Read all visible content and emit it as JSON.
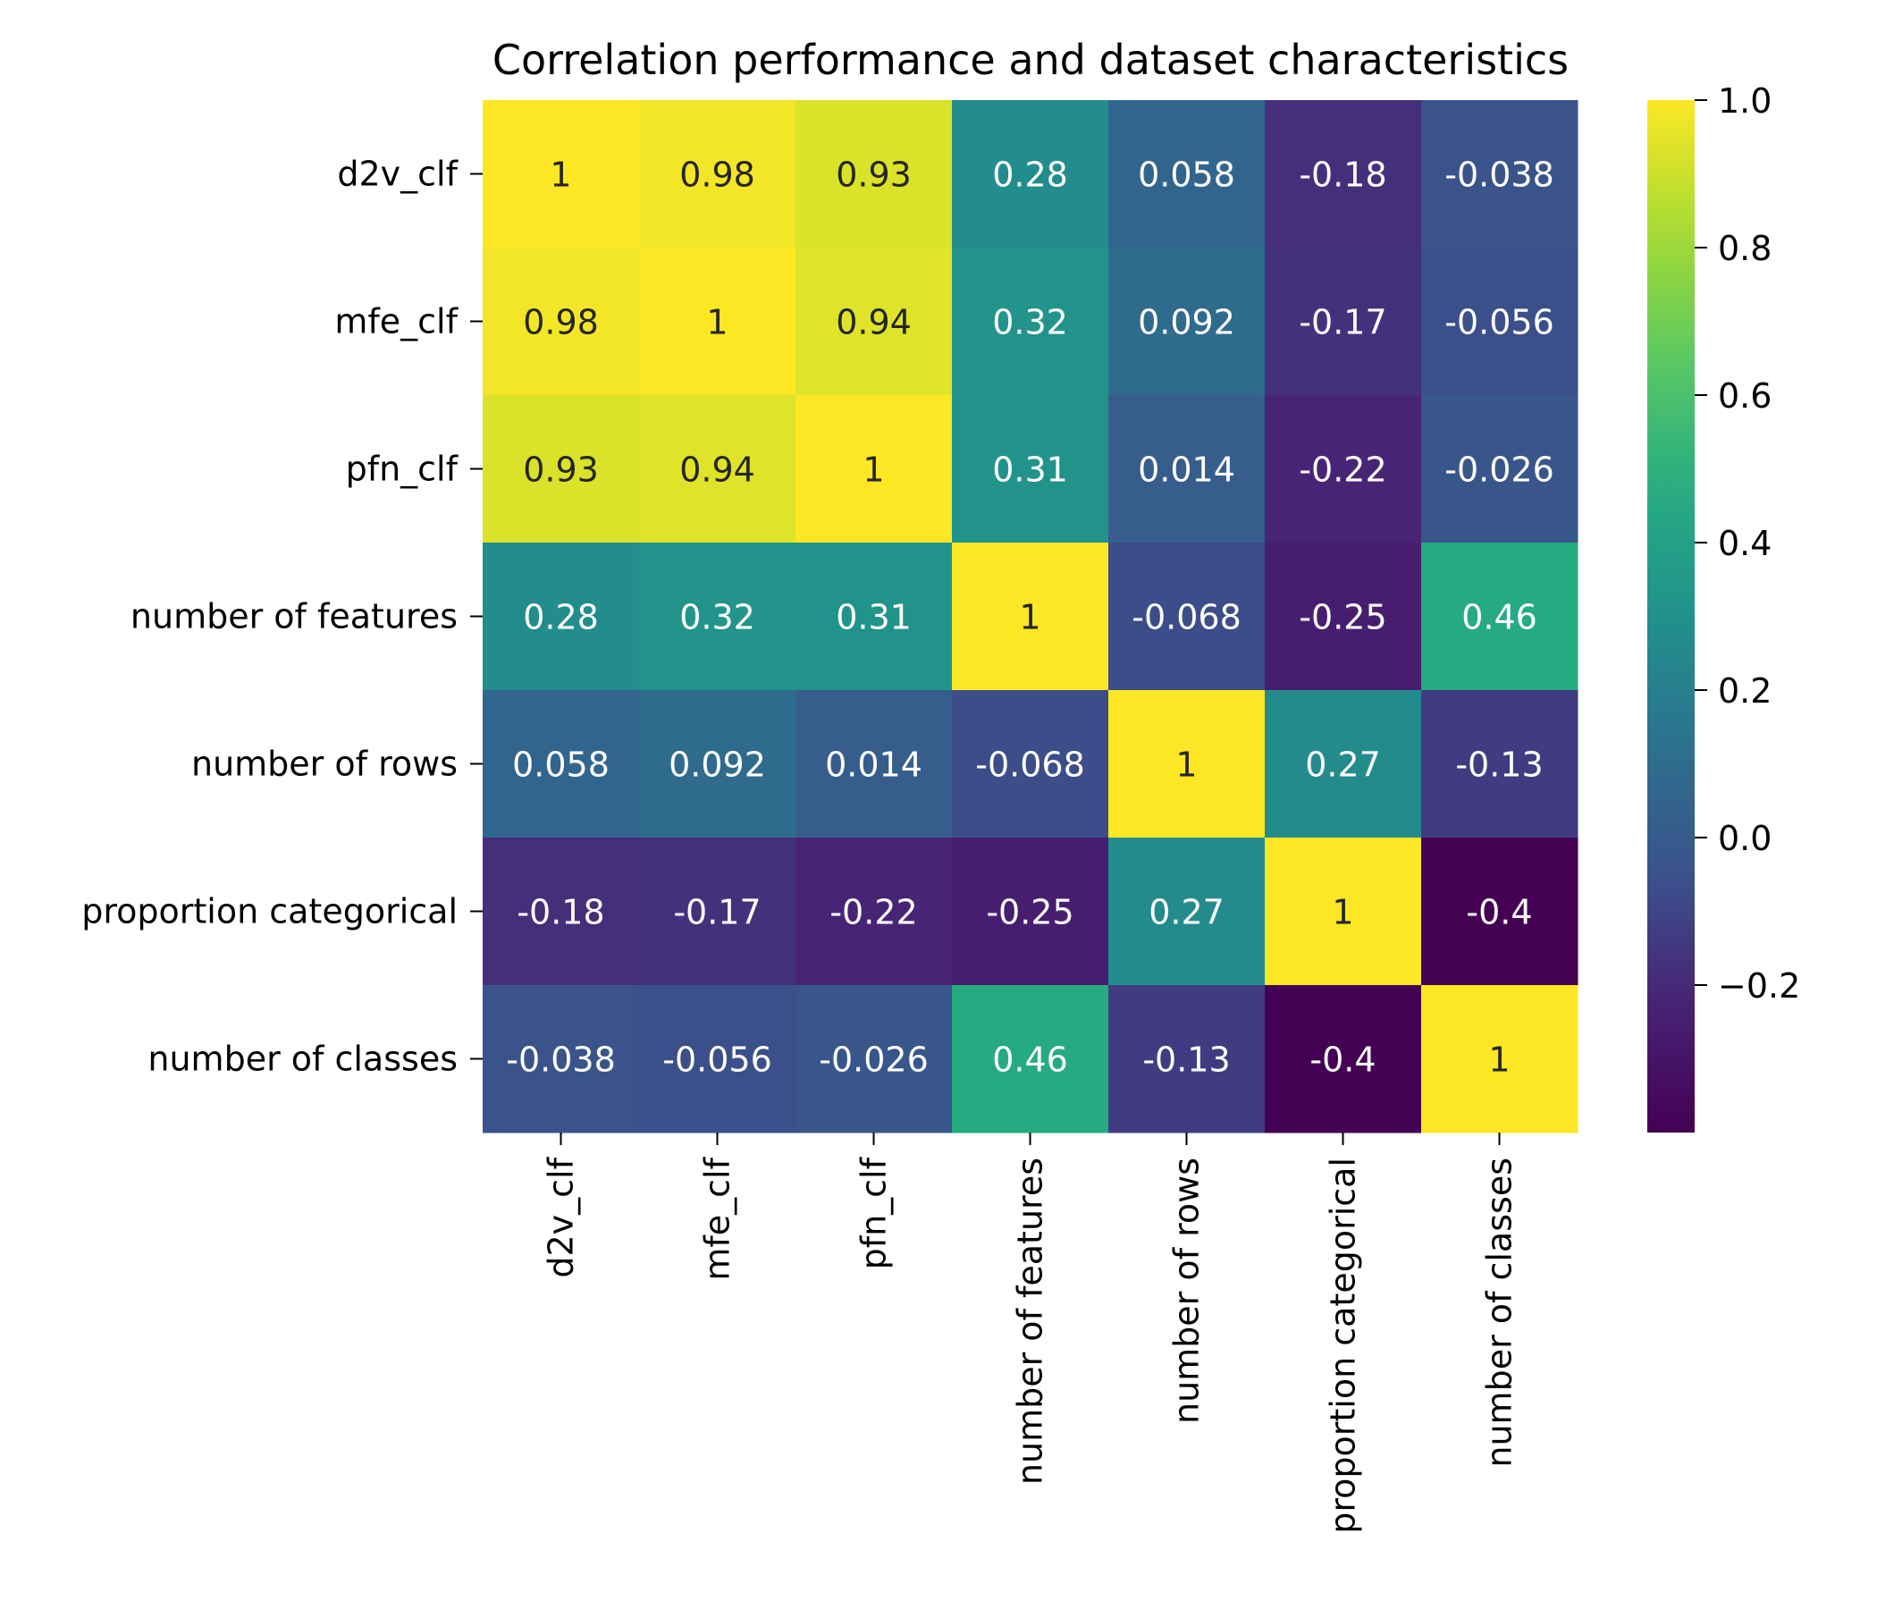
{
  "chart_data": {
    "type": "heatmap",
    "title": "Correlation performance and dataset characteristics",
    "row_labels": [
      "d2v_clf",
      "mfe_clf",
      "pfn_clf",
      "number of features",
      "number of rows",
      "proportion categorical",
      "number of classes"
    ],
    "col_labels": [
      "d2v_clf",
      "mfe_clf",
      "pfn_clf",
      "number of features",
      "number of rows",
      "proportion categorical",
      "number of classes"
    ],
    "values": [
      [
        1,
        0.98,
        0.93,
        0.28,
        0.058,
        -0.18,
        -0.038
      ],
      [
        0.98,
        1,
        0.94,
        0.32,
        0.092,
        -0.17,
        -0.056
      ],
      [
        0.93,
        0.94,
        1,
        0.31,
        0.014,
        -0.22,
        -0.026
      ],
      [
        0.28,
        0.32,
        0.31,
        1,
        -0.068,
        -0.25,
        0.46
      ],
      [
        0.058,
        0.092,
        0.014,
        -0.068,
        1,
        0.27,
        -0.13
      ],
      [
        -0.18,
        -0.17,
        -0.22,
        -0.25,
        0.27,
        1,
        -0.4
      ],
      [
        -0.038,
        -0.056,
        -0.026,
        0.46,
        -0.13,
        -0.4,
        1
      ]
    ],
    "value_labels": [
      [
        "1",
        "0.98",
        "0.93",
        "0.28",
        "0.058",
        "-0.18",
        "-0.038"
      ],
      [
        "0.98",
        "1",
        "0.94",
        "0.32",
        "0.092",
        "-0.17",
        "-0.056"
      ],
      [
        "0.93",
        "0.94",
        "1",
        "0.31",
        "0.014",
        "-0.22",
        "-0.026"
      ],
      [
        "0.28",
        "0.32",
        "0.31",
        "1",
        "-0.068",
        "-0.25",
        "0.46"
      ],
      [
        "0.058",
        "0.092",
        "0.014",
        "-0.068",
        "1",
        "0.27",
        "-0.13"
      ],
      [
        "-0.18",
        "-0.17",
        "-0.22",
        "-0.25",
        "0.27",
        "1",
        "-0.4"
      ],
      [
        "-0.038",
        "-0.056",
        "-0.026",
        "0.46",
        "-0.13",
        "-0.4",
        "1"
      ]
    ],
    "colormap": "viridis",
    "colorbar": {
      "vmin": -0.4,
      "vmax": 1.0,
      "ticks": [
        1.0,
        0.8,
        0.6,
        0.4,
        0.2,
        0.0,
        -0.2
      ],
      "tick_labels": [
        "1.0",
        "0.8",
        "0.6",
        "0.4",
        "0.2",
        "0.0",
        "−0.2"
      ]
    },
    "colors": {
      "text_dark": "#262626",
      "text_light": "#ffffff",
      "axis": "#000000"
    }
  }
}
